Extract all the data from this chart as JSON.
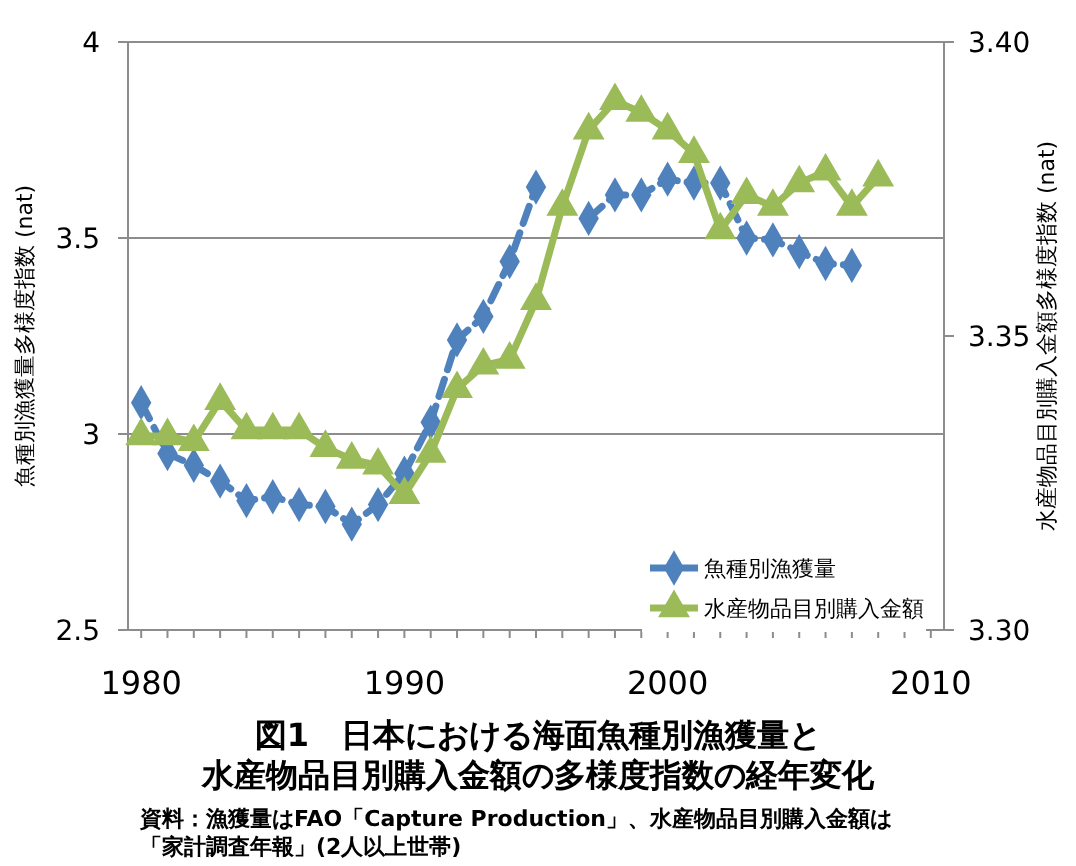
{
  "chart_data": {
    "type": "line",
    "title": "図1　日本における海面魚種別漁獲量と水産物品目別購入金額の多様度指数の経年変化",
    "ylabel": "魚種別漁獲量多様度指数 (nat)",
    "y2label": "水産物品目別購入金額多様度指数 (nat)",
    "annotations": [
      "資料：漁獲量はFAO「Capture Production」、水産物品目別購入金額は「家計調査年報」(2人以上世帯)"
    ],
    "xlim": [
      1979.5,
      2010.5
    ],
    "xticks": [
      1980,
      1990,
      2000,
      2010
    ],
    "ylim": [
      2.5,
      4
    ],
    "yticks": [
      2.5,
      3,
      3.5,
      4
    ],
    "y2lim": [
      3.3,
      3.4
    ],
    "y2ticks": [
      {
        "value": 3.3,
        "label": "3.30"
      },
      {
        "value": 3.35,
        "label": "3.35"
      },
      {
        "value": 3.4,
        "label": "3.40"
      }
    ],
    "grid": "y",
    "legend": "bottom right",
    "series": [
      {
        "name": "魚種別漁獲量",
        "color": "#4f81bd",
        "marker": "diamond",
        "line_style": "dashed",
        "x": [
          1980,
          1981,
          1982,
          1983,
          1984,
          1985,
          1986,
          1987,
          1988,
          1989,
          1990,
          1991,
          1992,
          1993,
          1994,
          1995,
          1996,
          1997,
          1998,
          1999,
          2000,
          2001,
          2002,
          2003,
          2004,
          2005,
          2006,
          2007
        ],
        "values": [
          3.08,
          2.95,
          2.92,
          2.88,
          2.83,
          2.84,
          2.82,
          2.815,
          2.77,
          2.82,
          2.9,
          3.03,
          3.24,
          3.3,
          3.44,
          3.63,
          null,
          3.55,
          3.61,
          3.61,
          3.65,
          3.64,
          3.64,
          3.5,
          3.495,
          3.465,
          3.435,
          3.43
        ]
      },
      {
        "name": "水産物品目別購入金額",
        "color": "#9bbb59",
        "marker": "triangle",
        "line_style": "solid",
        "axis": "y2",
        "x": [
          1980,
          1981,
          1982,
          1983,
          1984,
          1985,
          1986,
          1987,
          1988,
          1989,
          1990,
          1991,
          1992,
          1993,
          1994,
          1995,
          1996,
          1997,
          1998,
          1999,
          2000,
          2001,
          2002,
          2003,
          2004,
          2005,
          2006,
          2007,
          2008
        ],
        "values": [
          3.333,
          3.333,
          3.332,
          3.339,
          3.334,
          3.334,
          3.334,
          3.331,
          3.329,
          3.328,
          3.323,
          3.33,
          3.341,
          3.345,
          3.346,
          3.356,
          3.372,
          3.385,
          3.39,
          3.388,
          3.385,
          3.381,
          3.368,
          3.374,
          3.372,
          3.376,
          3.378,
          3.372,
          3.377
        ]
      }
    ]
  }
}
